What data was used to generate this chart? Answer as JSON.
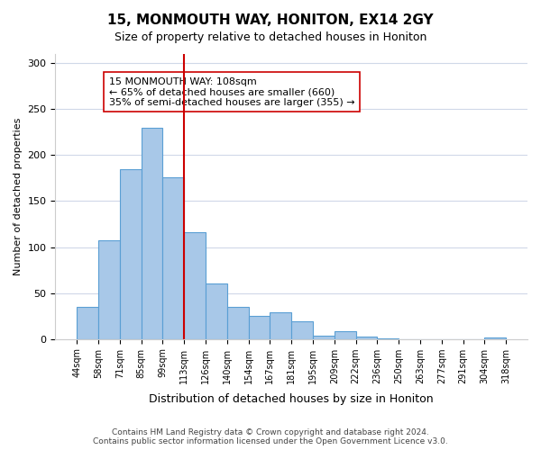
{
  "title": "15, MONMOUTH WAY, HONITON, EX14 2GY",
  "subtitle": "Size of property relative to detached houses in Honiton",
  "xlabel": "Distribution of detached houses by size in Honiton",
  "ylabel": "Number of detached properties",
  "footer_line1": "Contains HM Land Registry data © Crown copyright and database right 2024.",
  "footer_line2": "Contains public sector information licensed under the Open Government Licence v3.0.",
  "bin_labels": [
    "44sqm",
    "58sqm",
    "71sqm",
    "85sqm",
    "99sqm",
    "113sqm",
    "126sqm",
    "140sqm",
    "154sqm",
    "167sqm",
    "181sqm",
    "195sqm",
    "209sqm",
    "222sqm",
    "236sqm",
    "250sqm",
    "263sqm",
    "277sqm",
    "291sqm",
    "304sqm",
    "318sqm"
  ],
  "bar_values": [
    35,
    107,
    185,
    230,
    176,
    116,
    60,
    35,
    25,
    29,
    19,
    4,
    8,
    3,
    1,
    0,
    0,
    0,
    0,
    2
  ],
  "bar_color": "#a8c8e8",
  "bar_edge_color": "#5a9fd4",
  "vline_x": 5,
  "vline_color": "#cc0000",
  "annotation_title": "15 MONMOUTH WAY: 108sqm",
  "annotation_line2": "← 65% of detached houses are smaller (660)",
  "annotation_line3": "35% of semi-detached houses are larger (355) →",
  "annotation_box_color": "#ffffff",
  "annotation_box_edge": "#cc0000",
  "ylim": [
    0,
    310
  ],
  "yticks": [
    0,
    50,
    100,
    150,
    200,
    250,
    300
  ],
  "background_color": "#ffffff",
  "grid_color": "#d0d8e8"
}
